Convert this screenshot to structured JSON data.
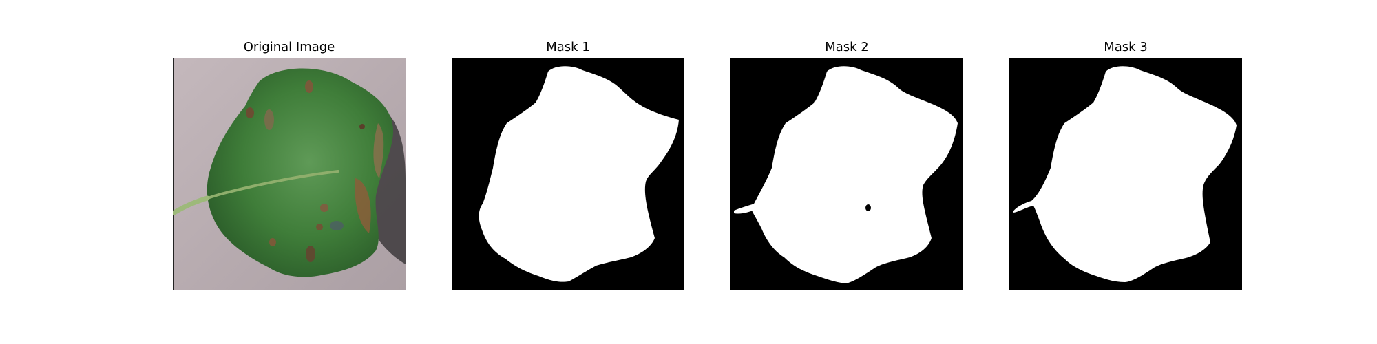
{
  "panels": [
    {
      "title": "Original Image"
    },
    {
      "title": "Mask 1"
    },
    {
      "title": "Mask 2"
    },
    {
      "title": "Mask 3"
    }
  ],
  "colors": {
    "background": "#ffffff",
    "mask_foreground": "#ffffff",
    "mask_background": "#000000",
    "leaf_green": "#3f7f3a",
    "surface_gray": "#b8aeb2"
  }
}
